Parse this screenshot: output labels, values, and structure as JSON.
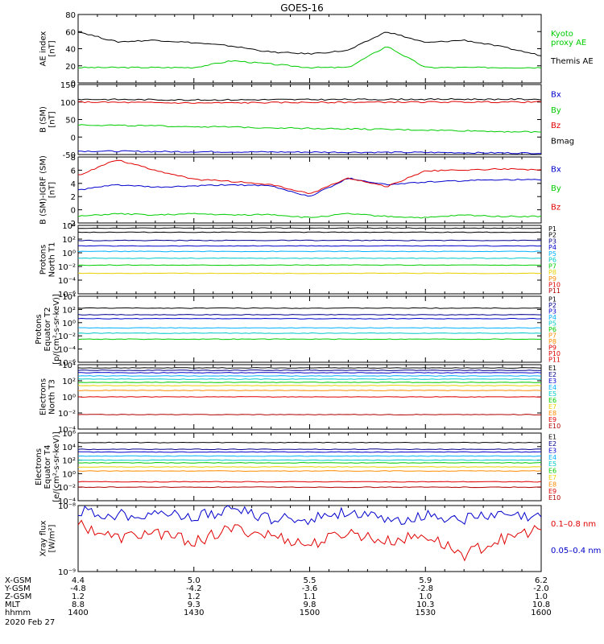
{
  "title": "GOES-16",
  "date_label": "2020 Feb 27",
  "colors": {
    "black": "#000000",
    "red": "#e00000",
    "green": "#00cc00",
    "blue": "#0000cc",
    "navy": "#00008b",
    "cyan": "#00c8c8",
    "deepskyblue": "#00b0ff",
    "yellow": "#e8d000",
    "orange": "#ff8c00",
    "darkred": "#b00000",
    "purple": "#8000a0"
  },
  "chart_data": [
    {
      "type": "line",
      "ylabel": [
        "AE index",
        "[nT]"
      ],
      "yscale": "linear",
      "ylim": [
        0,
        80
      ],
      "yticks": [
        "0",
        "20",
        "40",
        "60",
        "80"
      ],
      "x": [
        1400,
        1410,
        1420,
        1430,
        1440,
        1450,
        1500,
        1510,
        1520,
        1530,
        1540,
        1550,
        1600
      ],
      "legend": [
        "Kyoto\nproxy AE",
        "Themis AE"
      ],
      "series": [
        {
          "name": "Kyoto proxy AE",
          "color": "green",
          "values": [
            18,
            18,
            18,
            18,
            26,
            22,
            18,
            18,
            43,
            18,
            18,
            18,
            18
          ]
        },
        {
          "name": "Themis AE",
          "color": "black",
          "values": [
            60,
            48,
            50,
            47,
            43,
            36,
            34,
            38,
            60,
            47,
            50,
            42,
            32
          ]
        }
      ]
    },
    {
      "type": "line",
      "ylabel": [
        "B (SM)",
        "[nT]"
      ],
      "yscale": "linear",
      "ylim": [
        -50,
        150
      ],
      "yticks": [
        "-50",
        "0",
        "50",
        "100",
        "150"
      ],
      "x": [
        1400,
        1430,
        1500,
        1530,
        1600
      ],
      "legend": [
        "Bx",
        "By",
        "Bz",
        "Bmag"
      ],
      "series": [
        {
          "name": "Bx",
          "color": "blue",
          "values": [
            -40,
            -42,
            -43,
            -44,
            -46
          ]
        },
        {
          "name": "By",
          "color": "green",
          "values": [
            35,
            30,
            25,
            20,
            14
          ]
        },
        {
          "name": "Bz",
          "color": "red",
          "values": [
            100,
            97,
            99,
            100,
            100
          ]
        },
        {
          "name": "Bmag",
          "color": "black",
          "values": [
            108,
            106,
            107,
            108,
            108
          ]
        }
      ]
    },
    {
      "type": "line",
      "ylabel": [
        "B (SM)-IGRF (SM)",
        "[nT]"
      ],
      "yscale": "linear",
      "ylim": [
        -2,
        8
      ],
      "yticks": [
        "-2",
        "0",
        "2",
        "4",
        "6",
        "8"
      ],
      "x": [
        1400,
        1410,
        1420,
        1430,
        1440,
        1450,
        1500,
        1510,
        1520,
        1530,
        1540,
        1550,
        1600
      ],
      "legend": [
        "Bx",
        "By",
        "Bz"
      ],
      "series": [
        {
          "name": "Bx",
          "color": "blue",
          "values": [
            3.0,
            3.8,
            3.4,
            3.6,
            3.8,
            3.6,
            2.0,
            4.8,
            3.8,
            4.2,
            4.4,
            4.6,
            4.5
          ]
        },
        {
          "name": "By",
          "color": "green",
          "values": [
            -1.0,
            -0.6,
            -0.8,
            -0.6,
            -0.8,
            -0.7,
            -1.2,
            -0.6,
            -1.0,
            -1.2,
            -0.8,
            -1.0,
            -1.0
          ]
        },
        {
          "name": "Bz",
          "color": "red",
          "values": [
            5.2,
            7.6,
            6.0,
            4.6,
            4.3,
            3.8,
            2.4,
            4.8,
            3.5,
            5.9,
            6.0,
            6.2,
            6.0
          ]
        }
      ]
    },
    {
      "type": "line",
      "ylabel": [
        "Protons",
        "North T1"
      ],
      "yscale": "log",
      "ylim": [
        -6,
        4
      ],
      "yticks": [
        "10⁻⁶",
        "10⁻⁴",
        "10⁻²",
        "10⁰",
        "10²",
        "10⁴"
      ],
      "legend": [
        "P1",
        "P2",
        "P3",
        "P4",
        "P5",
        "P6",
        "P7",
        "P8",
        "P9",
        "P10",
        "P11"
      ],
      "series": [
        {
          "name": "P1",
          "color": "black",
          "values": [
            3.6
          ]
        },
        {
          "name": "P2",
          "color": "black",
          "values": [
            3.0
          ]
        },
        {
          "name": "P3",
          "color": "navy",
          "values": [
            1.8
          ]
        },
        {
          "name": "P4",
          "color": "blue",
          "values": [
            1.0
          ]
        },
        {
          "name": "P5",
          "color": "deepskyblue",
          "values": [
            0.2
          ]
        },
        {
          "name": "P6",
          "color": "cyan",
          "values": [
            -0.8
          ]
        },
        {
          "name": "P7",
          "color": "green",
          "values": [
            -1.8
          ]
        },
        {
          "name": "P8",
          "color": "yellow",
          "values": [
            -3.0
          ]
        },
        {
          "name": "P9",
          "color": "orange",
          "values": []
        },
        {
          "name": "P10",
          "color": "red",
          "values": []
        },
        {
          "name": "P11",
          "color": "darkred",
          "values": []
        }
      ]
    },
    {
      "type": "line",
      "ylabel": [
        "Protons",
        "Equator T2",
        "[p/(cm²-s-sr-keV)]"
      ],
      "yscale": "log",
      "ylim": [
        -6,
        4
      ],
      "yticks": [
        "10⁻⁶",
        "10⁻⁴",
        "10⁻²",
        "10⁰",
        "10²",
        "10⁴"
      ],
      "legend": [
        "P1",
        "P2",
        "P3",
        "P4",
        "P5",
        "P6",
        "P7",
        "P8",
        "P9",
        "P10",
        "P11"
      ],
      "series": [
        {
          "name": "P1",
          "color": "black",
          "values": [
            2.2
          ]
        },
        {
          "name": "P2",
          "color": "navy",
          "values": [
            1.2
          ]
        },
        {
          "name": "P3",
          "color": "blue",
          "values": [
            0.6
          ]
        },
        {
          "name": "P4",
          "color": "deepskyblue",
          "values": [
            -0.8
          ]
        },
        {
          "name": "P5",
          "color": "cyan",
          "values": [
            -1.6
          ]
        },
        {
          "name": "P6",
          "color": "green",
          "values": [
            -2.5
          ]
        }
      ]
    },
    {
      "type": "line",
      "ylabel": [
        "Electrons",
        "North T3"
      ],
      "yscale": "log",
      "ylim": [
        -4,
        4
      ],
      "yticks": [
        "10⁻⁴",
        "10⁻²",
        "10⁰",
        "10²",
        "10⁴"
      ],
      "legend": [
        "E1",
        "E2",
        "E3",
        "E4",
        "E5",
        "E6",
        "E7",
        "E8",
        "E9",
        "E10"
      ],
      "series": [
        {
          "name": "E1",
          "color": "black",
          "values": [
            3.6
          ]
        },
        {
          "name": "E2",
          "color": "navy",
          "values": [
            3.3
          ]
        },
        {
          "name": "E3",
          "color": "blue",
          "values": [
            3.0
          ]
        },
        {
          "name": "E4",
          "color": "deepskyblue",
          "values": [
            2.6
          ]
        },
        {
          "name": "E5",
          "color": "cyan",
          "values": [
            2.2
          ]
        },
        {
          "name": "E6",
          "color": "green",
          "values": [
            1.8
          ]
        },
        {
          "name": "E7",
          "color": "yellow",
          "values": [
            1.4
          ]
        },
        {
          "name": "E8",
          "color": "orange",
          "values": [
            0.8
          ]
        },
        {
          "name": "E9",
          "color": "red",
          "values": [
            0.0
          ]
        },
        {
          "name": "E10",
          "color": "darkred",
          "values": [
            -2.2
          ]
        }
      ]
    },
    {
      "type": "line",
      "ylabel": [
        "Electrons",
        "Equator T4",
        "[e/(cm²-s-sr-keV)]"
      ],
      "yscale": "log",
      "ylim": [
        -4,
        6
      ],
      "yticks": [
        "10⁻⁴",
        "10⁻²",
        "10⁰",
        "10²",
        "10⁴",
        "10⁶"
      ],
      "legend": [
        "E1",
        "E2",
        "E3",
        "E4",
        "E5",
        "E6",
        "E7",
        "E8",
        "E9",
        "E10"
      ],
      "series": [
        {
          "name": "E1",
          "color": "black",
          "values": [
            4.6
          ]
        },
        {
          "name": "E2",
          "color": "navy",
          "values": [
            3.6
          ]
        },
        {
          "name": "E3",
          "color": "blue",
          "values": [
            3.2
          ]
        },
        {
          "name": "E4",
          "color": "deepskyblue",
          "values": [
            2.6
          ]
        },
        {
          "name": "E5",
          "color": "cyan",
          "values": [
            2.0
          ]
        },
        {
          "name": "E6",
          "color": "green",
          "values": [
            1.6
          ]
        },
        {
          "name": "E7",
          "color": "yellow",
          "values": [
            1.0
          ]
        },
        {
          "name": "E8",
          "color": "orange",
          "values": [
            0.4
          ]
        },
        {
          "name": "E9",
          "color": "red",
          "values": [
            -1.2
          ]
        },
        {
          "name": "E10",
          "color": "darkred",
          "values": [
            -2.0
          ]
        }
      ]
    },
    {
      "type": "line",
      "ylabel": [
        "Xray flux",
        "[W/m²]"
      ],
      "yscale": "log",
      "ylim": [
        -9,
        -8
      ],
      "yticks": [
        "10⁻⁹",
        "10⁻⁸"
      ],
      "x": [
        1400,
        1410,
        1420,
        1430,
        1440,
        1450,
        1500,
        1510,
        1520,
        1530,
        1540,
        1550,
        1600
      ],
      "legend": [
        "0.1–0.8 nm",
        "0.05–0.4 nm"
      ],
      "series": [
        {
          "name": "0.1–0.8 nm",
          "color": "red",
          "values": [
            -8.28,
            -8.5,
            -8.4,
            -8.55,
            -8.35,
            -8.45,
            -8.6,
            -8.4,
            -8.55,
            -8.45,
            -8.75,
            -8.5,
            -8.35
          ]
        },
        {
          "name": "0.05–0.4 nm",
          "color": "blue",
          "values": [
            -8.08,
            -8.15,
            -8.1,
            -8.18,
            -8.05,
            -8.2,
            -8.2,
            -8.08,
            -8.25,
            -8.15,
            -8.2,
            -8.15,
            -8.2
          ]
        }
      ]
    }
  ],
  "xaxis": {
    "row_labels": [
      "X-GSM",
      "Y-GSM",
      "Z-GSM",
      "MLT",
      "hhmm"
    ],
    "columns": [
      {
        "values": [
          "4.4",
          "-4.8",
          "1.2",
          "8.8",
          "1400"
        ]
      },
      {
        "values": [
          "5.0",
          "-4.2",
          "1.2",
          "9.3",
          "1430"
        ]
      },
      {
        "values": [
          "5.5",
          "-3.6",
          "1.1",
          "9.8",
          "1500"
        ]
      },
      {
        "values": [
          "5.9",
          "-2.8",
          "1.0",
          "10.3",
          "1530"
        ]
      },
      {
        "values": [
          "6.2",
          "-2.0",
          "1.0",
          "10.8",
          "1600"
        ]
      }
    ]
  }
}
